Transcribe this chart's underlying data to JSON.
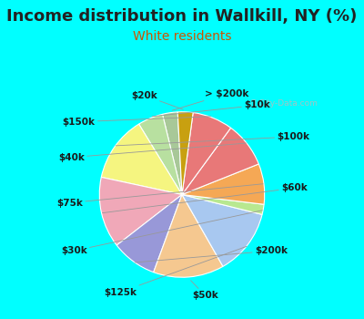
{
  "title": "Income distribution in Wallkill, NY (%)",
  "subtitle": "White residents",
  "bg_top_color": "#00FFFF",
  "chart_panel_color": "#d8f0d8",
  "labels": [
    "> $200k",
    "$10k",
    "$100k",
    "$60k",
    "$200k",
    "$50k",
    "$125k",
    "$30k",
    "$75k",
    "$40k",
    "$150k",
    "$20k"
  ],
  "sizes": [
    3,
    5,
    13,
    14,
    9,
    14,
    13,
    2,
    8,
    9,
    8,
    3
  ],
  "colors": [
    "#a8c898",
    "#b8e0a0",
    "#f5f580",
    "#f0a8b8",
    "#9898d8",
    "#f5c890",
    "#a8c8f0",
    "#b8e890",
    "#f5a855",
    "#e87878",
    "#e87878",
    "#c8a010"
  ],
  "startangle": 93,
  "label_fontsize": 7.5,
  "title_fontsize": 13,
  "subtitle_fontsize": 10,
  "title_color": "#222222",
  "subtitle_color": "#cc5500",
  "watermark": "City-Data.com"
}
